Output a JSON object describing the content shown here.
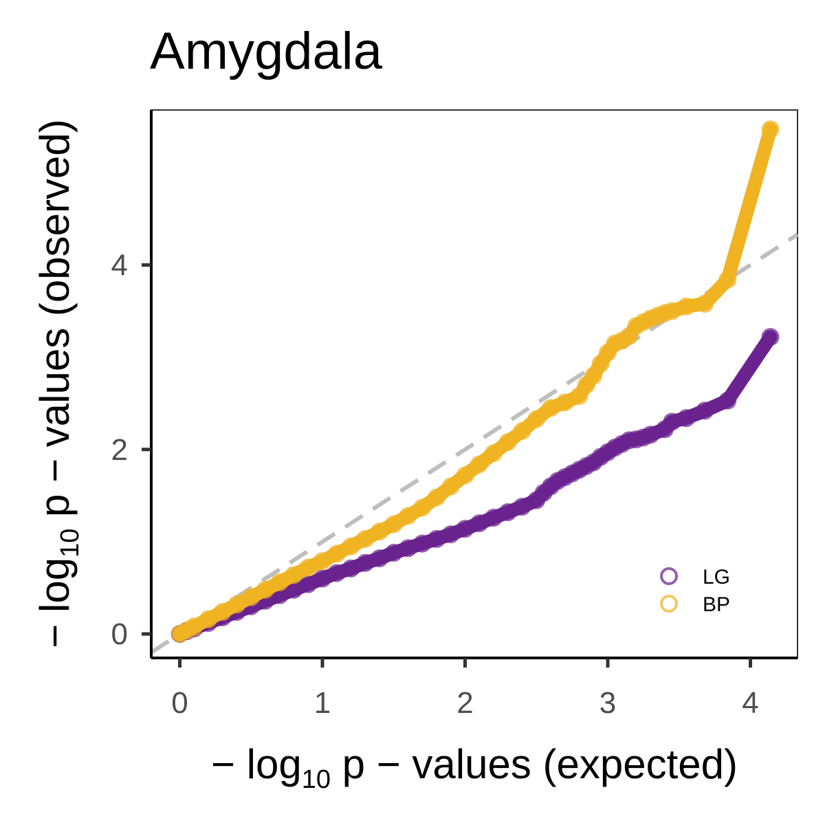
{
  "chart_data": {
    "type": "scatter",
    "title": "Amygdala",
    "xlabel": {
      "prefix": "− log",
      "sub": "10",
      "suffix": " p − values (expected)"
    },
    "ylabel": {
      "prefix": "− log",
      "sub": "10",
      "suffix": " p − values (observed)"
    },
    "xlim": [
      -0.2,
      4.33
    ],
    "ylim": [
      -0.26,
      5.68
    ],
    "x_ticks": [
      0,
      1,
      2,
      3,
      4
    ],
    "y_ticks": [
      0,
      2,
      4
    ],
    "x_tick_labels": [
      "0",
      "1",
      "2",
      "3",
      "4"
    ],
    "y_tick_labels": [
      "0",
      "2",
      "4"
    ],
    "grid": false,
    "legend_position": "bottom-right",
    "reference_line": {
      "style": "dashed",
      "color": "#bebebe",
      "slope": 1,
      "intercept": 0
    },
    "series": [
      {
        "name": "LG",
        "color": "#6a228f",
        "x": [
          0,
          0.05,
          0.1,
          0.2,
          0.3,
          0.4,
          0.5,
          0.6,
          0.7,
          0.8,
          0.9,
          1.0,
          1.1,
          1.2,
          1.3,
          1.4,
          1.5,
          1.6,
          1.7,
          1.8,
          1.9,
          2.0,
          2.1,
          2.2,
          2.3,
          2.4,
          2.5,
          2.55,
          2.6,
          2.65,
          2.7,
          2.75,
          2.8,
          2.85,
          2.9,
          2.95,
          3.0,
          3.05,
          3.1,
          3.15,
          3.2,
          3.25,
          3.3,
          3.4,
          3.45,
          3.55,
          3.68,
          3.84,
          4.14
        ],
        "y": [
          0,
          0.03,
          0.06,
          0.12,
          0.18,
          0.24,
          0.3,
          0.36,
          0.42,
          0.48,
          0.54,
          0.6,
          0.66,
          0.71,
          0.77,
          0.82,
          0.88,
          0.93,
          0.98,
          1.03,
          1.08,
          1.14,
          1.2,
          1.26,
          1.32,
          1.38,
          1.45,
          1.53,
          1.6,
          1.66,
          1.7,
          1.74,
          1.78,
          1.82,
          1.86,
          1.92,
          1.97,
          2.02,
          2.06,
          2.1,
          2.11,
          2.13,
          2.16,
          2.22,
          2.3,
          2.34,
          2.42,
          2.53,
          3.22
        ]
      },
      {
        "name": "BP",
        "color": "#f0b322",
        "x": [
          0,
          0.05,
          0.1,
          0.2,
          0.3,
          0.4,
          0.5,
          0.6,
          0.7,
          0.8,
          0.9,
          1.0,
          1.1,
          1.2,
          1.3,
          1.4,
          1.5,
          1.6,
          1.7,
          1.8,
          1.9,
          2.0,
          2.1,
          2.2,
          2.3,
          2.4,
          2.5,
          2.6,
          2.7,
          2.8,
          2.85,
          2.9,
          2.95,
          3.0,
          3.05,
          3.1,
          3.15,
          3.2,
          3.25,
          3.3,
          3.35,
          3.4,
          3.45,
          3.55,
          3.68,
          3.84,
          4.14
        ],
        "y": [
          0,
          0.04,
          0.08,
          0.16,
          0.24,
          0.32,
          0.4,
          0.48,
          0.56,
          0.64,
          0.72,
          0.79,
          0.87,
          0.95,
          1.03,
          1.11,
          1.19,
          1.28,
          1.37,
          1.48,
          1.6,
          1.72,
          1.84,
          1.96,
          2.08,
          2.2,
          2.33,
          2.45,
          2.51,
          2.58,
          2.7,
          2.8,
          2.93,
          3.05,
          3.15,
          3.18,
          3.23,
          3.34,
          3.38,
          3.42,
          3.45,
          3.48,
          3.5,
          3.55,
          3.58,
          3.84,
          5.47
        ]
      }
    ]
  }
}
